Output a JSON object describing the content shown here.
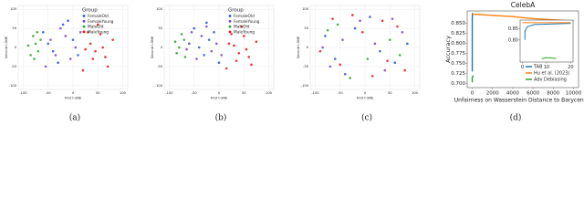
{
  "chart_data": [
    {
      "type": "scatter",
      "caption": "(a)",
      "xlabel": "First t-SNE",
      "ylabel": "Second t-SNE",
      "legend_title": "Group",
      "legend": "upper right",
      "grid": true,
      "xlim": [
        -110,
        110
      ],
      "ylim": [
        -110,
        110
      ],
      "xticks": [
        -100,
        -50,
        0,
        50,
        100
      ],
      "yticks": [
        -100,
        -50,
        0,
        50,
        100
      ],
      "series": [
        {
          "name": "FemaleOld",
          "color": "#2a4fd6",
          "x": [
            -60,
            -40,
            -20,
            0,
            -30,
            -50,
            10,
            -10
          ],
          "values": [
            40,
            -10,
            60,
            20,
            -40,
            10,
            -20,
            70
          ]
        },
        {
          "name": "FemaleYoung",
          "color": "#7a3fc2",
          "x": [
            -45,
            -25,
            -5,
            -35,
            -15,
            5,
            -55,
            15
          ],
          "values": [
            20,
            50,
            -30,
            -20,
            30,
            0,
            -50,
            40
          ]
        },
        {
          "name": "MaleOld",
          "color": "#2ca02c",
          "x": [
            -85,
            -75,
            -80,
            -70,
            -90,
            -65,
            -78,
            -72
          ],
          "values": [
            -20,
            10,
            30,
            -10,
            5,
            20,
            -30,
            40
          ]
        },
        {
          "name": "MaleYoung",
          "color": "#e8141b",
          "x": [
            20,
            40,
            60,
            80,
            30,
            50,
            70,
            45,
            35,
            65,
            55,
            25
          ],
          "values": [
            -60,
            -30,
            0,
            20,
            40,
            60,
            -50,
            -10,
            10,
            -25,
            35,
            -5
          ]
        }
      ]
    },
    {
      "type": "scatter",
      "caption": "(b)",
      "xlabel": "First t-SNE",
      "ylabel": "Second t-SNE",
      "legend_title": "Group",
      "legend": "upper right",
      "grid": true,
      "xlim": [
        -110,
        110
      ],
      "ylim": [
        -110,
        110
      ],
      "xticks": [
        -100,
        -50,
        0,
        50,
        100
      ],
      "yticks": [
        -100,
        -50,
        0,
        50,
        100
      ],
      "series": [
        {
          "name": "FemaleOld",
          "color": "#2a4fd6",
          "x": [
            -50,
            -30,
            -10,
            -40,
            -20,
            0,
            -60,
            -25
          ],
          "values": [
            50,
            -20,
            40,
            0,
            20,
            -40,
            10,
            65
          ]
        },
        {
          "name": "FemaleYoung",
          "color": "#7a3fc2",
          "x": [
            -35,
            -15,
            -45,
            -5,
            -55,
            -25,
            5,
            -65
          ],
          "values": [
            30,
            -10,
            -30,
            10,
            40,
            55,
            -20,
            -5
          ]
        },
        {
          "name": "MaleOld",
          "color": "#2ca02c",
          "x": [
            -80,
            -70,
            -85,
            -75,
            -68,
            -88
          ],
          "values": [
            0,
            20,
            -15,
            35,
            -25,
            15
          ]
        },
        {
          "name": "MaleYoung",
          "color": "#e8141b",
          "x": [
            15,
            35,
            55,
            75,
            25,
            45,
            65,
            40,
            30,
            60,
            50,
            20
          ],
          "values": [
            -55,
            -35,
            -5,
            15,
            35,
            55,
            -45,
            -15,
            5,
            -25,
            30,
            10
          ]
        }
      ]
    },
    {
      "type": "scatter",
      "caption": "(c)",
      "xlabel": "First t-SNE",
      "ylabel": "Second t-SNE",
      "grid": true,
      "xlim": [
        -110,
        110
      ],
      "ylim": [
        -110,
        110
      ],
      "xticks": [
        -100,
        -50,
        0,
        50,
        100
      ],
      "yticks": [
        -100,
        -50,
        0,
        50,
        100
      ],
      "series": [
        {
          "name": "FemaleOld",
          "color": "#2a4fd6",
          "x": [
            -80,
            -40,
            10,
            60,
            85,
            -20,
            30,
            -60
          ],
          "values": [
            30,
            -70,
            80,
            -40,
            10,
            50,
            -10,
            -30
          ]
        },
        {
          "name": "FemaleYoung",
          "color": "#7a3fc2",
          "x": [
            -70,
            -10,
            40,
            75,
            -45,
            20,
            -85,
            55
          ],
          "values": [
            -50,
            70,
            -60,
            40,
            20,
            10,
            0,
            75
          ]
        },
        {
          "name": "MaleOld",
          "color": "#2ca02c",
          "x": [
            -55,
            5,
            50,
            -30,
            70,
            -75
          ],
          "values": [
            60,
            -30,
            20,
            -80,
            -20,
            45
          ]
        },
        {
          "name": "MaleYoung",
          "color": "#e8141b",
          "x": [
            -90,
            -50,
            -5,
            35,
            80,
            -25,
            15,
            65,
            -65,
            45
          ],
          "values": [
            -10,
            -45,
            40,
            70,
            -60,
            85,
            -75,
            55,
            75,
            -35
          ]
        }
      ]
    },
    {
      "type": "line",
      "caption": "(d)",
      "title": "CelebA",
      "xlabel": "Unfairness on Wasserstein Distance to Barycenter",
      "ylabel": "Accuracy",
      "legend": "lower right",
      "xlim": [
        -500,
        10500
      ],
      "ylim": [
        0.69,
        0.88
      ],
      "xticks": [
        0,
        2000,
        4000,
        6000,
        8000,
        10000
      ],
      "yticks": [
        {
          "value": 0.7,
          "label": "0.700"
        },
        {
          "value": 0.725,
          "label": "0.725"
        },
        {
          "value": 0.75,
          "label": "0.750"
        },
        {
          "value": 0.775,
          "label": "0.775"
        },
        {
          "value": 0.8,
          "label": "0.800"
        },
        {
          "value": 0.825,
          "label": "0.825"
        },
        {
          "value": 0.85,
          "label": "0.850"
        }
      ],
      "series": [
        {
          "name": "TAB",
          "color": "#1f77b4",
          "x": [
            0,
            0,
            0,
            20
          ],
          "values": [
            0.73,
            0.8,
            0.86,
            0.875
          ]
        },
        {
          "name": "Hu et al. (2023)",
          "color": "#ff7f0e",
          "x": [
            0,
            2000,
            4000,
            6000,
            8000,
            10000
          ],
          "values": [
            0.872,
            0.869,
            0.866,
            0.861,
            0.858,
            0.855
          ]
        },
        {
          "name": "Adv Debiasing",
          "color": "#2ca02c",
          "x": [
            0,
            0,
            100
          ],
          "values": [
            0.703,
            0.715,
            0.72
          ]
        }
      ]
    },
    {
      "type": "line",
      "xlim": [
        -1,
        21
      ],
      "ylim": [
        0.7,
        0.89
      ],
      "xticks": [
        0,
        10,
        20
      ],
      "yticks": [
        {
          "value": 0.8,
          "label": "0.80"
        },
        {
          "value": 0.85,
          "label": "0.85"
        }
      ],
      "series": [
        {
          "color": "#1f77b4",
          "x": [
            1,
            1,
            2,
            5,
            20
          ],
          "values": [
            0.8,
            0.84,
            0.86,
            0.87,
            0.875
          ]
        },
        {
          "color": "#ff7f0e",
          "x": [
            0,
            20
          ],
          "values": [
            0.878,
            0.878
          ]
        },
        {
          "color": "#2ca02c",
          "x": [
            8,
            10,
            12,
            14
          ],
          "values": [
            0.715,
            0.72,
            0.718,
            0.716
          ]
        }
      ]
    }
  ]
}
